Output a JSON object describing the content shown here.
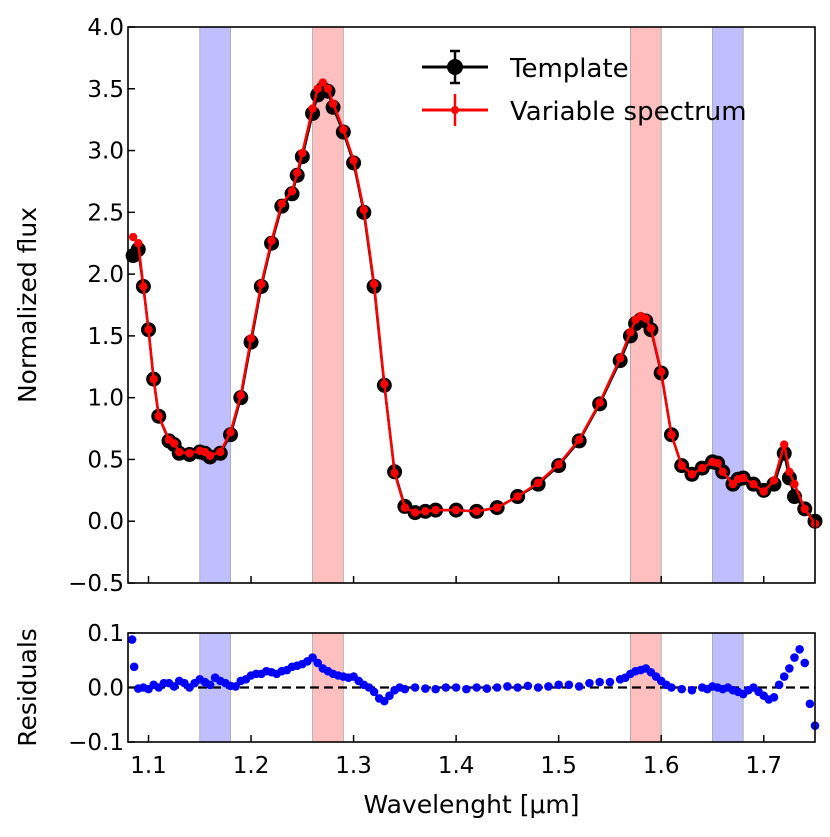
{
  "chart_data": [
    {
      "type": "line",
      "panel": "main",
      "ylabel": "Normalized flux",
      "xlim": [
        1.08,
        1.75
      ],
      "ylim": [
        -0.5,
        4.0
      ],
      "yticks": [
        "−0.5",
        "0.0",
        "0.5",
        "1.0",
        "1.5",
        "2.0",
        "2.5",
        "3.0",
        "3.5",
        "4.0"
      ],
      "ytick_values": [
        -0.5,
        0.0,
        0.5,
        1.0,
        1.5,
        2.0,
        2.5,
        3.0,
        3.5,
        4.0
      ],
      "xtick_values": [
        1.1,
        1.2,
        1.3,
        1.4,
        1.5,
        1.6,
        1.7
      ],
      "legend_position": "upper-right",
      "bands": [
        {
          "x0": 1.15,
          "x1": 1.18,
          "color": "#aaaaff"
        },
        {
          "x0": 1.26,
          "x1": 1.29,
          "color": "#ffaaaa"
        },
        {
          "x0": 1.57,
          "x1": 1.6,
          "color": "#ffaaaa"
        },
        {
          "x0": 1.65,
          "x1": 1.68,
          "color": "#aaaaff"
        }
      ],
      "series": [
        {
          "name": "Template",
          "color": "#000000",
          "marker": "circle-errorbar",
          "x": [
            1.085,
            1.09,
            1.095,
            1.1,
            1.105,
            1.11,
            1.12,
            1.125,
            1.13,
            1.14,
            1.15,
            1.155,
            1.16,
            1.17,
            1.18,
            1.19,
            1.2,
            1.21,
            1.22,
            1.23,
            1.24,
            1.245,
            1.25,
            1.26,
            1.265,
            1.27,
            1.275,
            1.28,
            1.29,
            1.3,
            1.31,
            1.32,
            1.33,
            1.34,
            1.35,
            1.36,
            1.37,
            1.38,
            1.4,
            1.42,
            1.44,
            1.46,
            1.48,
            1.5,
            1.52,
            1.54,
            1.56,
            1.57,
            1.575,
            1.58,
            1.585,
            1.59,
            1.6,
            1.61,
            1.62,
            1.63,
            1.64,
            1.65,
            1.655,
            1.66,
            1.67,
            1.675,
            1.68,
            1.69,
            1.7,
            1.71,
            1.72,
            1.725,
            1.73,
            1.74,
            1.75
          ],
          "y": [
            2.15,
            2.2,
            1.9,
            1.55,
            1.15,
            0.85,
            0.65,
            0.62,
            0.55,
            0.54,
            0.56,
            0.55,
            0.52,
            0.55,
            0.7,
            1.0,
            1.45,
            1.9,
            2.25,
            2.55,
            2.65,
            2.8,
            2.95,
            3.3,
            3.45,
            3.5,
            3.48,
            3.35,
            3.15,
            2.9,
            2.5,
            1.9,
            1.1,
            0.4,
            0.12,
            0.07,
            0.08,
            0.09,
            0.09,
            0.08,
            0.11,
            0.2,
            0.3,
            0.45,
            0.65,
            0.95,
            1.3,
            1.5,
            1.6,
            1.63,
            1.62,
            1.55,
            1.2,
            0.7,
            0.45,
            0.38,
            0.43,
            0.48,
            0.47,
            0.4,
            0.3,
            0.34,
            0.35,
            0.3,
            0.25,
            0.3,
            0.55,
            0.35,
            0.2,
            0.1,
            0.0
          ]
        },
        {
          "name": "Variable spectrum",
          "color": "#ff0000",
          "marker": "circle-errorbar",
          "x": [
            1.085,
            1.09,
            1.095,
            1.1,
            1.105,
            1.11,
            1.12,
            1.125,
            1.13,
            1.14,
            1.15,
            1.155,
            1.16,
            1.17,
            1.18,
            1.19,
            1.2,
            1.21,
            1.22,
            1.23,
            1.24,
            1.245,
            1.25,
            1.26,
            1.265,
            1.27,
            1.275,
            1.28,
            1.29,
            1.3,
            1.31,
            1.32,
            1.33,
            1.34,
            1.35,
            1.36,
            1.37,
            1.38,
            1.4,
            1.42,
            1.44,
            1.46,
            1.48,
            1.5,
            1.52,
            1.54,
            1.56,
            1.57,
            1.575,
            1.58,
            1.585,
            1.59,
            1.6,
            1.61,
            1.62,
            1.63,
            1.64,
            1.65,
            1.655,
            1.66,
            1.67,
            1.675,
            1.68,
            1.69,
            1.7,
            1.71,
            1.72,
            1.725,
            1.73,
            1.74,
            1.75
          ],
          "y": [
            2.3,
            2.25,
            1.9,
            1.55,
            1.15,
            0.85,
            0.66,
            0.63,
            0.56,
            0.55,
            0.57,
            0.56,
            0.53,
            0.56,
            0.72,
            1.02,
            1.48,
            1.92,
            2.27,
            2.57,
            2.67,
            2.82,
            2.98,
            3.34,
            3.5,
            3.55,
            3.5,
            3.38,
            3.17,
            2.92,
            2.52,
            1.92,
            1.11,
            0.39,
            0.11,
            0.07,
            0.08,
            0.09,
            0.09,
            0.08,
            0.11,
            0.2,
            0.31,
            0.46,
            0.66,
            0.96,
            1.32,
            1.53,
            1.63,
            1.66,
            1.64,
            1.56,
            1.21,
            0.7,
            0.45,
            0.38,
            0.43,
            0.48,
            0.47,
            0.4,
            0.3,
            0.34,
            0.35,
            0.3,
            0.24,
            0.33,
            0.62,
            0.4,
            0.3,
            0.1,
            -0.02
          ]
        }
      ]
    },
    {
      "type": "scatter",
      "panel": "residuals",
      "xlabel": "Wavelenght [μm]",
      "ylabel": "Residuals",
      "xlim": [
        1.08,
        1.75
      ],
      "ylim": [
        -0.1,
        0.1
      ],
      "yticks": [
        "−0.1",
        "0.0",
        "0.1"
      ],
      "ytick_values": [
        -0.1,
        0.0,
        0.1
      ],
      "xticks": [
        "1.1",
        "1.2",
        "1.3",
        "1.4",
        "1.5",
        "1.6",
        "1.7"
      ],
      "xtick_values": [
        1.1,
        1.2,
        1.3,
        1.4,
        1.5,
        1.6,
        1.7
      ],
      "zero_line": {
        "y": 0.0,
        "style": "dashed",
        "color": "#000000"
      },
      "bands": [
        {
          "x0": 1.15,
          "x1": 1.18,
          "color": "#aaaaff"
        },
        {
          "x0": 1.26,
          "x1": 1.29,
          "color": "#ffaaaa"
        },
        {
          "x0": 1.57,
          "x1": 1.6,
          "color": "#ffaaaa"
        },
        {
          "x0": 1.65,
          "x1": 1.68,
          "color": "#aaaaff"
        }
      ],
      "series": [
        {
          "color": "#0000ff",
          "x": [
            1.084,
            1.086,
            1.09,
            1.095,
            1.1,
            1.105,
            1.11,
            1.115,
            1.12,
            1.125,
            1.13,
            1.135,
            1.14,
            1.145,
            1.15,
            1.155,
            1.16,
            1.165,
            1.17,
            1.175,
            1.18,
            1.185,
            1.19,
            1.195,
            1.2,
            1.205,
            1.21,
            1.215,
            1.22,
            1.225,
            1.23,
            1.235,
            1.24,
            1.245,
            1.25,
            1.255,
            1.26,
            1.265,
            1.27,
            1.275,
            1.28,
            1.285,
            1.29,
            1.295,
            1.3,
            1.305,
            1.31,
            1.315,
            1.32,
            1.325,
            1.33,
            1.335,
            1.34,
            1.345,
            1.35,
            1.36,
            1.37,
            1.38,
            1.39,
            1.4,
            1.41,
            1.42,
            1.43,
            1.44,
            1.45,
            1.46,
            1.47,
            1.48,
            1.49,
            1.5,
            1.51,
            1.52,
            1.53,
            1.54,
            1.55,
            1.56,
            1.565,
            1.57,
            1.575,
            1.58,
            1.585,
            1.59,
            1.595,
            1.6,
            1.605,
            1.61,
            1.62,
            1.63,
            1.64,
            1.645,
            1.65,
            1.655,
            1.66,
            1.665,
            1.67,
            1.675,
            1.68,
            1.685,
            1.69,
            1.695,
            1.7,
            1.705,
            1.71,
            1.715,
            1.72,
            1.725,
            1.73,
            1.735,
            1.74,
            1.745,
            1.75
          ],
          "y": [
            0.088,
            0.038,
            -0.002,
            0.0,
            -0.003,
            0.005,
            0.0,
            0.008,
            0.008,
            0.002,
            0.012,
            0.008,
            0.0,
            0.008,
            0.015,
            0.01,
            0.005,
            0.018,
            0.012,
            0.008,
            0.003,
            0.002,
            0.012,
            0.015,
            0.022,
            0.025,
            0.025,
            0.03,
            0.028,
            0.025,
            0.03,
            0.032,
            0.038,
            0.04,
            0.043,
            0.048,
            0.055,
            0.045,
            0.035,
            0.03,
            0.025,
            0.022,
            0.02,
            0.018,
            0.02,
            0.012,
            0.005,
            0.0,
            -0.008,
            -0.02,
            -0.025,
            -0.015,
            -0.005,
            0.0,
            -0.003,
            0.0,
            -0.002,
            -0.003,
            0.0,
            0.0,
            -0.003,
            0.0,
            -0.002,
            0.0,
            0.002,
            0.0,
            0.003,
            0.0,
            0.002,
            0.005,
            0.005,
            0.002,
            0.008,
            0.01,
            0.01,
            0.015,
            0.018,
            0.025,
            0.03,
            0.032,
            0.035,
            0.028,
            0.02,
            0.012,
            0.005,
            0.0,
            -0.003,
            -0.005,
            0.0,
            -0.003,
            0.002,
            0.0,
            -0.003,
            0.0,
            -0.005,
            -0.008,
            -0.012,
            -0.005,
            0.0,
            -0.008,
            -0.015,
            -0.022,
            -0.018,
            0.005,
            0.02,
            0.035,
            0.055,
            0.07,
            0.045,
            -0.03,
            -0.07
          ]
        }
      ]
    }
  ]
}
